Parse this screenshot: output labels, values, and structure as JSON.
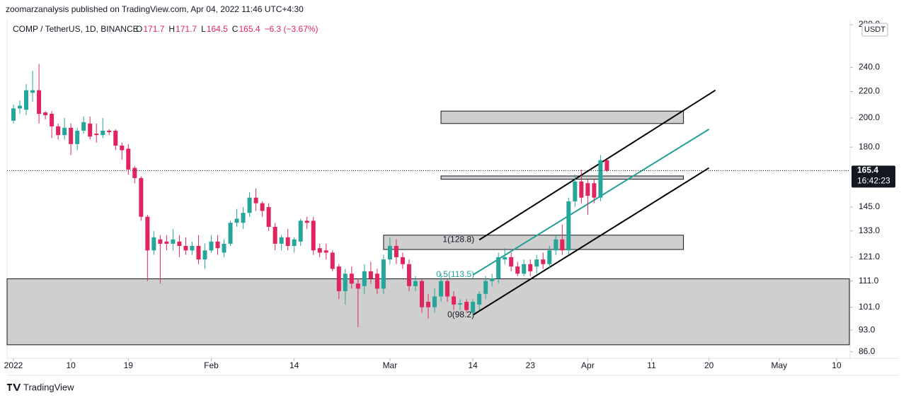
{
  "header": {
    "publisher": "zoomarzanalysis published on TradingView.com, Apr 04, 2022 11:46 UTC+4:30",
    "symbol": "COMP / TetherUS, 1D, BINANCE",
    "ohlc_labels": [
      "O",
      "H",
      "L",
      "C"
    ],
    "change": "−6.3 (−3.67%)",
    "currency": "USDT",
    "countdown": "16:42:23",
    "brand": "TradingView"
  },
  "chart_data": {
    "type": "candlestick",
    "log_scale": true,
    "up_color": "#26a69a",
    "down_color": "#e0245e",
    "xlim": [
      "2021-12-31",
      "2022-05-12"
    ],
    "ylim": [
      84,
      285
    ],
    "xticks": [
      {
        "value": "2022-01-01",
        "label": "2022"
      },
      {
        "value": "2022-01-10",
        "label": "10"
      },
      {
        "value": "2022-01-19",
        "label": "19"
      },
      {
        "value": "2022-02-01",
        "label": "Feb"
      },
      {
        "value": "2022-02-14",
        "label": "14"
      },
      {
        "value": "2022-03-01",
        "label": "Mar"
      },
      {
        "value": "2022-03-14",
        "label": "14"
      },
      {
        "value": "2022-03-23",
        "label": "23"
      },
      {
        "value": "2022-04-01",
        "label": "Apr"
      },
      {
        "value": "2022-04-11",
        "label": "11"
      },
      {
        "value": "2022-04-20",
        "label": "20"
      },
      {
        "value": "2022-05-01",
        "label": "May"
      },
      {
        "value": "2022-05-10",
        "label": "10"
      }
    ],
    "yticks": [
      {
        "value": 86,
        "label": "86.0"
      },
      {
        "value": 93,
        "label": "93.0"
      },
      {
        "value": 101,
        "label": "101.0"
      },
      {
        "value": 111,
        "label": "111.0"
      },
      {
        "value": 121,
        "label": "121.0"
      },
      {
        "value": 133,
        "label": "133.0"
      },
      {
        "value": 145,
        "label": "145.0"
      },
      {
        "value": 180,
        "label": "180.0"
      },
      {
        "value": 200,
        "label": "200.0"
      },
      {
        "value": 220,
        "label": "220.0"
      },
      {
        "value": 240,
        "label": "240.0"
      },
      {
        "value": 280,
        "label": "280.0"
      }
    ],
    "candles": {
      "x": [
        "2022-01-01",
        "2022-01-02",
        "2022-01-03",
        "2022-01-04",
        "2022-01-05",
        "2022-01-06",
        "2022-01-07",
        "2022-01-08",
        "2022-01-09",
        "2022-01-10",
        "2022-01-11",
        "2022-01-12",
        "2022-01-13",
        "2022-01-14",
        "2022-01-15",
        "2022-01-16",
        "2022-01-17",
        "2022-01-18",
        "2022-01-19",
        "2022-01-20",
        "2022-01-21",
        "2022-01-22",
        "2022-01-23",
        "2022-01-24",
        "2022-01-25",
        "2022-01-26",
        "2022-01-27",
        "2022-01-28",
        "2022-01-29",
        "2022-01-30",
        "2022-01-31",
        "2022-02-01",
        "2022-02-02",
        "2022-02-03",
        "2022-02-04",
        "2022-02-05",
        "2022-02-06",
        "2022-02-07",
        "2022-02-08",
        "2022-02-09",
        "2022-02-10",
        "2022-02-11",
        "2022-02-12",
        "2022-02-13",
        "2022-02-14",
        "2022-02-15",
        "2022-02-16",
        "2022-02-17",
        "2022-02-18",
        "2022-02-19",
        "2022-02-20",
        "2022-02-21",
        "2022-02-22",
        "2022-02-23",
        "2022-02-24",
        "2022-02-25",
        "2022-02-26",
        "2022-02-27",
        "2022-02-28",
        "2022-03-01",
        "2022-03-02",
        "2022-03-03",
        "2022-03-04",
        "2022-03-05",
        "2022-03-06",
        "2022-03-07",
        "2022-03-08",
        "2022-03-09",
        "2022-03-10",
        "2022-03-11",
        "2022-03-12",
        "2022-03-13",
        "2022-03-14",
        "2022-03-15",
        "2022-03-16",
        "2022-03-17",
        "2022-03-18",
        "2022-03-19",
        "2022-03-20",
        "2022-03-21",
        "2022-03-22",
        "2022-03-23",
        "2022-03-24",
        "2022-03-25",
        "2022-03-26",
        "2022-03-27",
        "2022-03-28",
        "2022-03-29",
        "2022-03-30",
        "2022-03-31",
        "2022-04-01",
        "2022-04-02",
        "2022-04-03",
        "2022-04-04"
      ],
      "open": [
        198,
        207,
        206,
        219,
        221,
        204,
        203,
        194,
        188,
        193,
        182,
        191,
        196,
        189,
        188,
        191,
        191,
        181,
        179,
        167,
        161,
        140,
        124,
        129,
        128,
        127,
        128,
        126,
        124,
        126,
        120,
        124,
        128,
        123,
        127,
        137,
        137,
        142,
        150,
        147,
        145,
        135,
        127,
        130,
        126,
        128,
        138,
        138,
        125,
        124,
        123,
        117,
        107,
        114,
        110,
        109,
        115,
        114,
        108,
        120,
        126,
        121,
        118,
        109,
        111,
        103,
        101,
        105,
        111,
        105,
        102,
        103,
        99,
        102,
        106,
        111,
        112,
        120,
        121,
        117,
        114,
        118,
        117,
        120,
        118,
        124,
        129,
        124,
        148,
        159,
        158,
        158,
        150,
        171.7
      ],
      "high": [
        210,
        213,
        226,
        237,
        243,
        205,
        205,
        196,
        200,
        196,
        193,
        201,
        201,
        196,
        200,
        192,
        192,
        183,
        182,
        168,
        162,
        141,
        133,
        131,
        131,
        134,
        131,
        130,
        128,
        131,
        127,
        131,
        131,
        129,
        138,
        144,
        145,
        153,
        155,
        148,
        147,
        137,
        131,
        134,
        130,
        139,
        140,
        140,
        127,
        127,
        124,
        118,
        116,
        117,
        112,
        118,
        119,
        116,
        122,
        130,
        129,
        123,
        120,
        113,
        112,
        106,
        108,
        114,
        112,
        107,
        104,
        104,
        104,
        107,
        113,
        114,
        123,
        125,
        123,
        119,
        120,
        120,
        122,
        123,
        126,
        131,
        136,
        150,
        163,
        166,
        160,
        160,
        175,
        171.7
      ],
      "low": [
        196,
        203,
        202,
        212,
        196,
        199,
        186,
        185,
        185,
        175,
        178,
        189,
        185,
        183,
        186,
        188,
        178,
        172,
        163,
        158,
        138,
        111,
        122,
        110,
        124,
        124,
        121,
        122,
        122,
        118,
        116,
        123,
        122,
        121,
        126,
        135,
        134,
        140,
        143,
        140,
        133,
        124,
        124,
        124,
        123,
        126,
        134,
        122,
        121,
        120,
        115,
        104,
        102,
        108,
        94,
        106,
        110,
        106,
        106,
        118,
        118,
        116,
        107,
        107,
        99,
        97,
        99,
        103,
        103,
        100,
        100,
        99,
        98,
        100,
        104,
        109,
        110,
        118,
        115,
        113,
        113,
        113,
        114,
        116,
        116,
        122,
        122,
        122,
        145,
        147,
        141,
        147,
        148,
        164.5
      ],
      "close": [
        207,
        209,
        221,
        221,
        203,
        202,
        194,
        188,
        193,
        182,
        191,
        197,
        187,
        188,
        191,
        190,
        181,
        178,
        166,
        161,
        140,
        124,
        130,
        127,
        127,
        129,
        126,
        124,
        126,
        120,
        124,
        128,
        125,
        127,
        137,
        139,
        142,
        150,
        147,
        143,
        135,
        127,
        130,
        126,
        129,
        138,
        137,
        124,
        123,
        123,
        116,
        107,
        114,
        110,
        108,
        115,
        112,
        108,
        120,
        126,
        121,
        118,
        109,
        111,
        101,
        101,
        105,
        111,
        105,
        102,
        102.5,
        100,
        103,
        106,
        111,
        112,
        121,
        121,
        117,
        114,
        118,
        115,
        120,
        118,
        124,
        129,
        124,
        148,
        159,
        150,
        151,
        150,
        171.7,
        165.4
      ]
    },
    "zones": [
      {
        "from": "2021-12-31",
        "to": "2022-05-12",
        "top": 111.9,
        "bottom": 88.2
      },
      {
        "from": "2022-03-09",
        "to": "2022-04-16",
        "top": 205,
        "bottom": 196
      },
      {
        "from": "2022-03-09",
        "to": "2022-04-16",
        "top": 162.2,
        "bottom": 160.3
      },
      {
        "from": "2022-02-28",
        "to": "2022-04-16",
        "top": 131,
        "bottom": 124.4
      }
    ],
    "lines": [
      {
        "from": "2022-03-15",
        "to": "2022-04-21",
        "start": 128.8,
        "end": 221,
        "color": "#000000"
      },
      {
        "from": "2022-03-14",
        "to": "2022-04-20",
        "start": 113.5,
        "end": 192,
        "color": "#22a095"
      },
      {
        "from": "2022-03-14",
        "to": "2022-04-20",
        "start": 98.2,
        "end": 167,
        "color": "#000000"
      }
    ],
    "fib_labels": [
      {
        "value": 128.8,
        "label": "1(128.8)"
      },
      {
        "value": 113.5,
        "label": "0.5(113.5)"
      },
      {
        "value": 98.2,
        "label": "0(98.2)"
      }
    ],
    "fib_colors": [
      "#131722",
      "#22a095",
      "#131722"
    ],
    "fib_date": "2022-03-14"
  }
}
